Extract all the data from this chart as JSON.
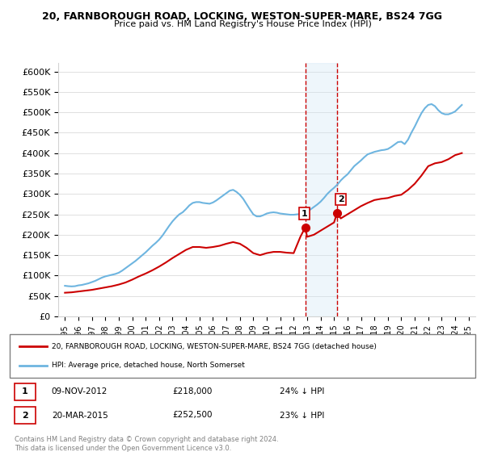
{
  "title": "20, FARNBOROUGH ROAD, LOCKING, WESTON-SUPER-MARE, BS24 7GG",
  "subtitle": "Price paid vs. HM Land Registry's House Price Index (HPI)",
  "ylabel": "",
  "xlabel": "",
  "ylim": [
    0,
    620000
  ],
  "yticks": [
    0,
    50000,
    100000,
    150000,
    200000,
    250000,
    300000,
    350000,
    400000,
    450000,
    500000,
    550000,
    600000
  ],
  "ytick_labels": [
    "£0",
    "£50K",
    "£100K",
    "£150K",
    "£200K",
    "£250K",
    "£300K",
    "£350K",
    "£400K",
    "£450K",
    "£500K",
    "£550K",
    "£600K"
  ],
  "hpi_color": "#6eb5e0",
  "price_color": "#cc0000",
  "marker_color": "#cc0000",
  "shade_color": "#d0e8f5",
  "vline_color": "#cc0000",
  "sale1_year": 2012.86,
  "sale1_price": 218000,
  "sale2_year": 2015.22,
  "sale2_price": 252500,
  "legend_label1": "20, FARNBOROUGH ROAD, LOCKING, WESTON-SUPER-MARE, BS24 7GG (detached house)",
  "legend_label2": "HPI: Average price, detached house, North Somerset",
  "annotation1_num": "1",
  "annotation1_date": "09-NOV-2012",
  "annotation1_price": "£218,000",
  "annotation1_hpi": "24% ↓ HPI",
  "annotation2_num": "2",
  "annotation2_date": "20-MAR-2015",
  "annotation2_price": "£252,500",
  "annotation2_hpi": "23% ↓ HPI",
  "footer": "Contains HM Land Registry data © Crown copyright and database right 2024.\nThis data is licensed under the Open Government Licence v3.0.",
  "hpi_data": {
    "years": [
      1995.0,
      1995.25,
      1995.5,
      1995.75,
      1996.0,
      1996.25,
      1996.5,
      1996.75,
      1997.0,
      1997.25,
      1997.5,
      1997.75,
      1998.0,
      1998.25,
      1998.5,
      1998.75,
      1999.0,
      1999.25,
      1999.5,
      1999.75,
      2000.0,
      2000.25,
      2000.5,
      2000.75,
      2001.0,
      2001.25,
      2001.5,
      2001.75,
      2002.0,
      2002.25,
      2002.5,
      2002.75,
      2003.0,
      2003.25,
      2003.5,
      2003.75,
      2004.0,
      2004.25,
      2004.5,
      2004.75,
      2005.0,
      2005.25,
      2005.5,
      2005.75,
      2006.0,
      2006.25,
      2006.5,
      2006.75,
      2007.0,
      2007.25,
      2007.5,
      2007.75,
      2008.0,
      2008.25,
      2008.5,
      2008.75,
      2009.0,
      2009.25,
      2009.5,
      2009.75,
      2010.0,
      2010.25,
      2010.5,
      2010.75,
      2011.0,
      2011.25,
      2011.5,
      2011.75,
      2012.0,
      2012.25,
      2012.5,
      2012.75,
      2013.0,
      2013.25,
      2013.5,
      2013.75,
      2014.0,
      2014.25,
      2014.5,
      2014.75,
      2015.0,
      2015.25,
      2015.5,
      2015.75,
      2016.0,
      2016.25,
      2016.5,
      2016.75,
      2017.0,
      2017.25,
      2017.5,
      2017.75,
      2018.0,
      2018.25,
      2018.5,
      2018.75,
      2019.0,
      2019.25,
      2019.5,
      2019.75,
      2020.0,
      2020.25,
      2020.5,
      2020.75,
      2021.0,
      2021.25,
      2021.5,
      2021.75,
      2022.0,
      2022.25,
      2022.5,
      2022.75,
      2023.0,
      2023.25,
      2023.5,
      2023.75,
      2024.0,
      2024.25,
      2024.5
    ],
    "values": [
      75000,
      74000,
      73500,
      74000,
      76000,
      77000,
      79000,
      81000,
      84000,
      87000,
      91000,
      95000,
      98000,
      100000,
      102000,
      104000,
      107000,
      112000,
      118000,
      124000,
      130000,
      136000,
      143000,
      150000,
      157000,
      165000,
      173000,
      180000,
      188000,
      198000,
      210000,
      222000,
      233000,
      242000,
      250000,
      255000,
      263000,
      272000,
      278000,
      280000,
      280000,
      278000,
      277000,
      276000,
      279000,
      284000,
      290000,
      296000,
      302000,
      308000,
      310000,
      305000,
      298000,
      288000,
      275000,
      262000,
      250000,
      245000,
      245000,
      248000,
      252000,
      254000,
      255000,
      254000,
      252000,
      251000,
      250000,
      249000,
      249000,
      250000,
      251000,
      254000,
      257000,
      262000,
      268000,
      274000,
      281000,
      290000,
      300000,
      308000,
      315000,
      323000,
      333000,
      341000,
      348000,
      358000,
      368000,
      375000,
      382000,
      390000,
      397000,
      400000,
      403000,
      405000,
      407000,
      408000,
      410000,
      415000,
      421000,
      427000,
      428000,
      422000,
      433000,
      450000,
      465000,
      482000,
      498000,
      510000,
      518000,
      520000,
      515000,
      505000,
      498000,
      495000,
      495000,
      498000,
      502000,
      510000,
      518000
    ]
  },
  "price_data": {
    "years": [
      1995.0,
      1995.5,
      1996.0,
      1996.5,
      1997.0,
      1997.5,
      1998.0,
      1998.5,
      1999.0,
      1999.5,
      2000.0,
      2000.5,
      2001.0,
      2001.5,
      2002.0,
      2002.5,
      2003.0,
      2003.5,
      2004.0,
      2004.5,
      2005.0,
      2005.5,
      2006.0,
      2006.5,
      2007.0,
      2007.5,
      2008.0,
      2008.5,
      2009.0,
      2009.5,
      2010.0,
      2010.5,
      2011.0,
      2011.5,
      2012.0,
      2012.5,
      2012.86,
      2013.0,
      2013.5,
      2014.0,
      2014.5,
      2015.0,
      2015.22,
      2015.5,
      2016.0,
      2016.5,
      2017.0,
      2017.5,
      2018.0,
      2018.5,
      2019.0,
      2019.5,
      2020.0,
      2020.5,
      2021.0,
      2021.5,
      2022.0,
      2022.5,
      2023.0,
      2023.5,
      2024.0,
      2024.5
    ],
    "values": [
      58000,
      59000,
      61000,
      63000,
      65000,
      68000,
      71000,
      74000,
      78000,
      83000,
      90000,
      98000,
      105000,
      113000,
      122000,
      132000,
      143000,
      153000,
      163000,
      170000,
      170000,
      168000,
      170000,
      173000,
      178000,
      182000,
      178000,
      168000,
      155000,
      150000,
      155000,
      158000,
      158000,
      156000,
      155000,
      195000,
      218000,
      195000,
      200000,
      210000,
      220000,
      230000,
      252500,
      240000,
      250000,
      260000,
      270000,
      278000,
      285000,
      288000,
      290000,
      295000,
      298000,
      310000,
      325000,
      345000,
      368000,
      375000,
      378000,
      385000,
      395000,
      400000
    ]
  }
}
